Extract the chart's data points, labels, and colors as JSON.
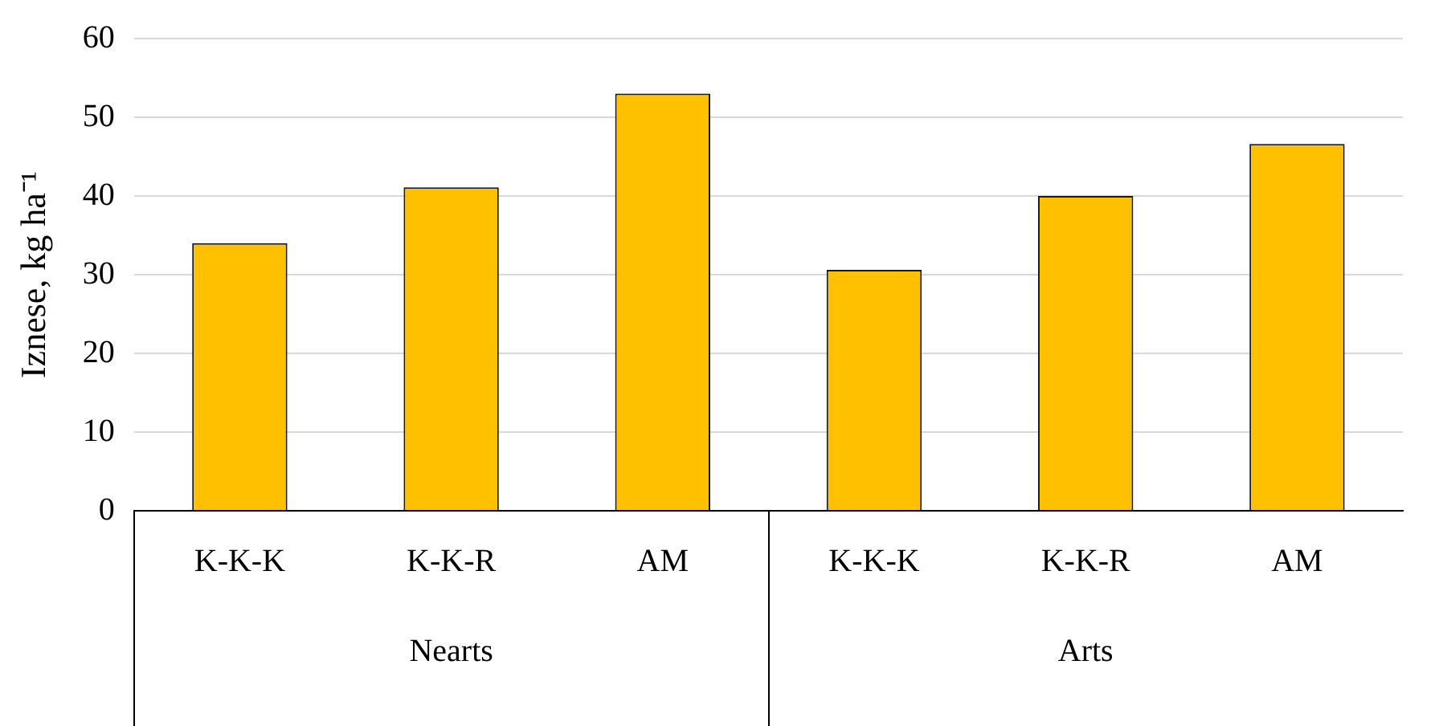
{
  "chart_data": {
    "type": "bar",
    "ylabel": "Iznese, kg ha⁻¹",
    "categories": [
      "K-K-K",
      "K-K-R",
      "AM",
      "K-K-K",
      "K-K-R",
      "AM"
    ],
    "values": [
      34,
      41.1,
      53,
      30.6,
      40,
      46.6
    ],
    "color": "#ffc000",
    "ylim": [
      0,
      60
    ],
    "yticks": [
      0,
      10,
      20,
      30,
      40,
      50,
      60
    ],
    "grid": "y",
    "annotations": [
      "Nearts",
      "Arts"
    ]
  }
}
